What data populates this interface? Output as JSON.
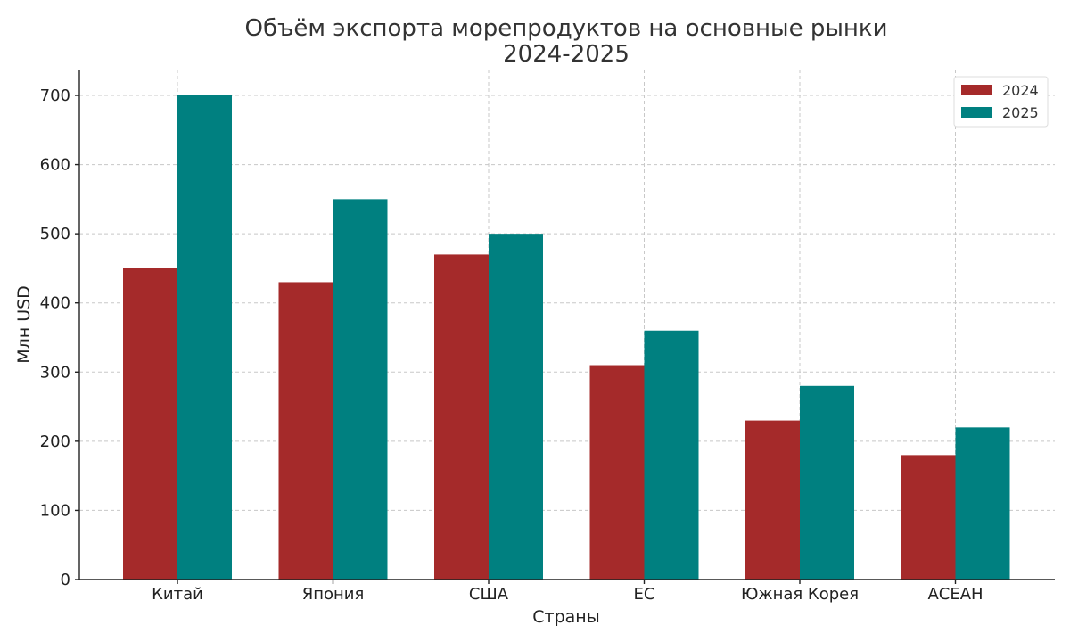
{
  "chart_data": {
    "type": "bar",
    "title_line1": "Объём экспорта морепродуктов на основные рынки",
    "title_line2": "2024-2025",
    "xlabel": "Страны",
    "ylabel": "Млн USD",
    "categories": [
      "Китай",
      "Япония",
      "США",
      "ЕС",
      "Южная Корея",
      "АСЕАН"
    ],
    "series": [
      {
        "name": "2024",
        "color": "#a52a2a",
        "values": [
          450,
          430,
          470,
          310,
          230,
          180
        ]
      },
      {
        "name": "2025",
        "color": "#008080",
        "values": [
          700,
          550,
          500,
          360,
          280,
          220
        ]
      }
    ],
    "ylim": [
      0,
      735
    ],
    "yticks": [
      0,
      100,
      200,
      300,
      400,
      500,
      600,
      700
    ],
    "grid": true,
    "legend_position": "top-right"
  }
}
